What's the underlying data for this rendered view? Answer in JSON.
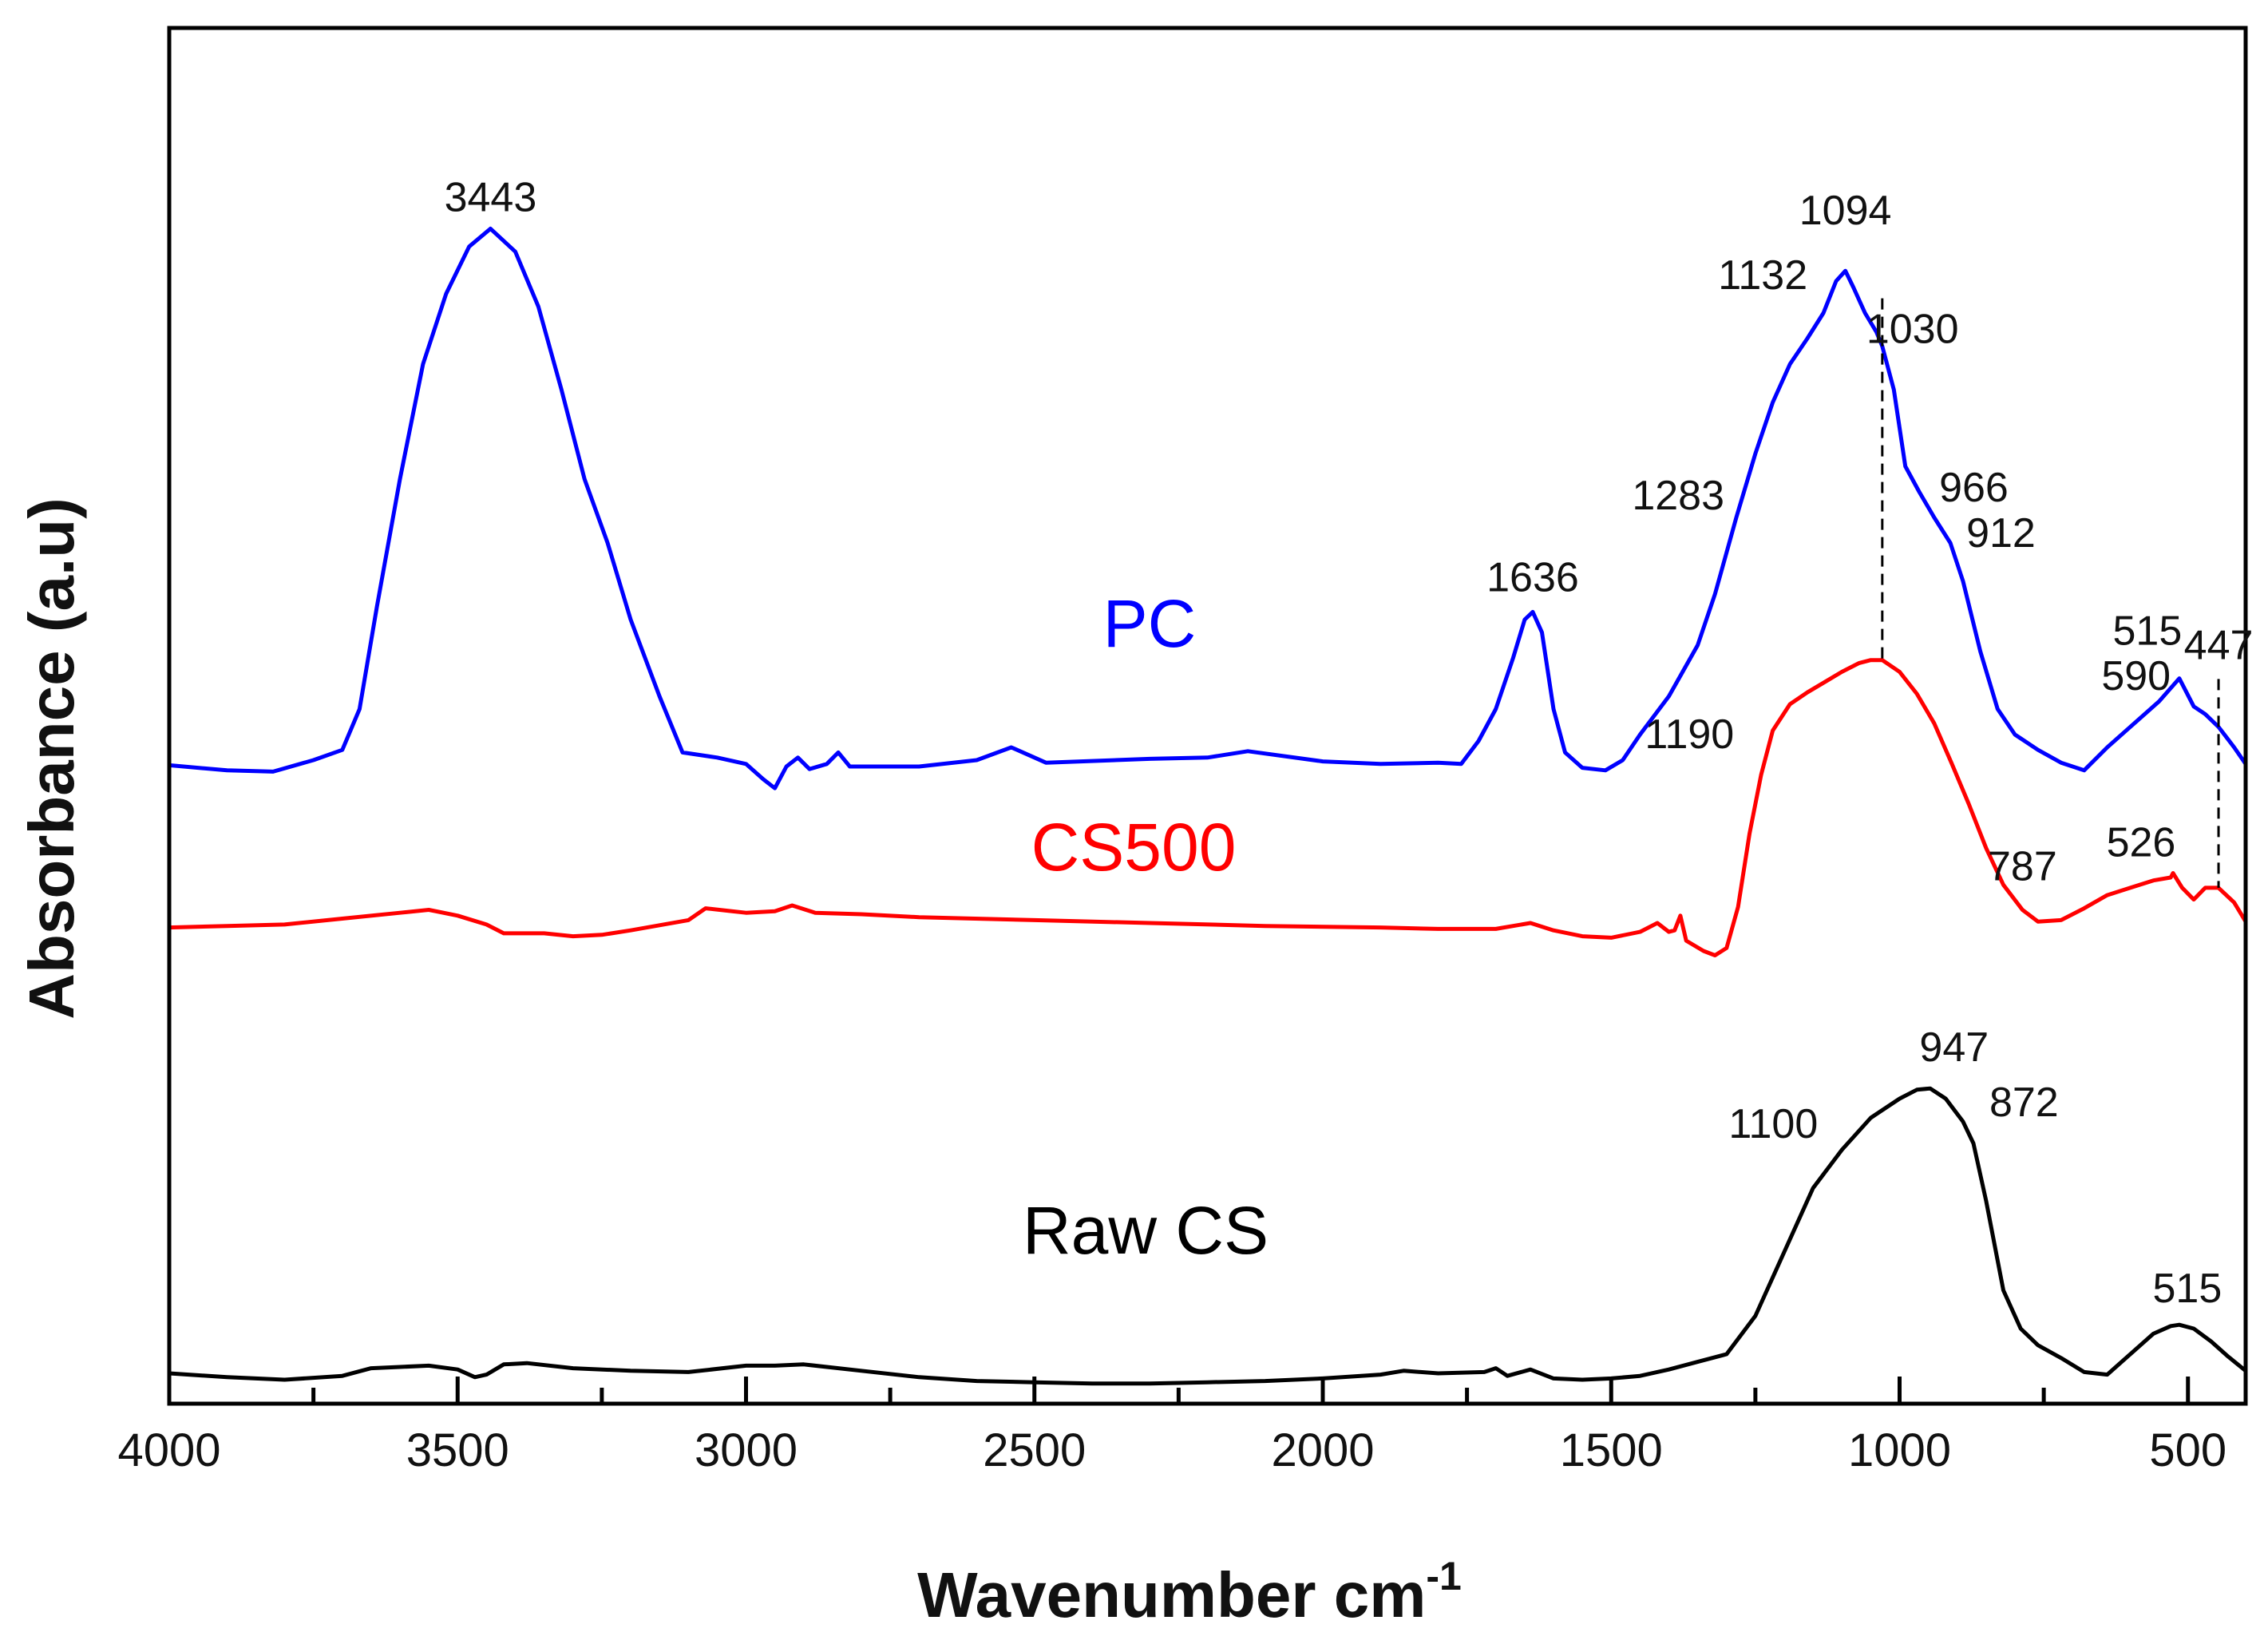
{
  "chart_data": {
    "type": "line",
    "title": "",
    "xlabel": "Wavenumber cm",
    "xlabel_superscript": "-1",
    "ylabel": "Absorbance (a.u)",
    "xlim": [
      4000,
      400
    ],
    "ylim": [
      0,
      1
    ],
    "y_ticks_shown": false,
    "grid": false,
    "x_ticks": [
      {
        "value": 4000,
        "label": "4000"
      },
      {
        "value": 3500,
        "label": "3500"
      },
      {
        "value": 3000,
        "label": "3000"
      },
      {
        "value": 2500,
        "label": "2500"
      },
      {
        "value": 2000,
        "label": "2000"
      },
      {
        "value": 1500,
        "label": "1500"
      },
      {
        "value": 1000,
        "label": "1000"
      },
      {
        "value": 500,
        "label": "500"
      }
    ],
    "series": [
      {
        "name": "PC",
        "color": "#0000ff",
        "points": [
          [
            4000,
            0.526
          ],
          [
            3900,
            0.522
          ],
          [
            3820,
            0.521
          ],
          [
            3750,
            0.53
          ],
          [
            3700,
            0.538
          ],
          [
            3670,
            0.57
          ],
          [
            3640,
            0.65
          ],
          [
            3600,
            0.75
          ],
          [
            3560,
            0.84
          ],
          [
            3520,
            0.895
          ],
          [
            3480,
            0.932
          ],
          [
            3443,
            0.946
          ],
          [
            3400,
            0.928
          ],
          [
            3360,
            0.885
          ],
          [
            3320,
            0.82
          ],
          [
            3280,
            0.75
          ],
          [
            3240,
            0.7
          ],
          [
            3200,
            0.64
          ],
          [
            3150,
            0.58
          ],
          [
            3110,
            0.536
          ],
          [
            3050,
            0.532
          ],
          [
            3000,
            0.527
          ],
          [
            2970,
            0.515
          ],
          [
            2950,
            0.508
          ],
          [
            2930,
            0.525
          ],
          [
            2910,
            0.532
          ],
          [
            2890,
            0.523
          ],
          [
            2860,
            0.527
          ],
          [
            2840,
            0.536
          ],
          [
            2820,
            0.525
          ],
          [
            2700,
            0.525
          ],
          [
            2600,
            0.53
          ],
          [
            2540,
            0.54
          ],
          [
            2480,
            0.528
          ],
          [
            2300,
            0.531
          ],
          [
            2200,
            0.532
          ],
          [
            2130,
            0.537
          ],
          [
            2000,
            0.529
          ],
          [
            1900,
            0.527
          ],
          [
            1800,
            0.528
          ],
          [
            1760,
            0.527
          ],
          [
            1730,
            0.545
          ],
          [
            1700,
            0.57
          ],
          [
            1670,
            0.61
          ],
          [
            1650,
            0.64
          ],
          [
            1636,
            0.646
          ],
          [
            1620,
            0.63
          ],
          [
            1600,
            0.57
          ],
          [
            1580,
            0.536
          ],
          [
            1550,
            0.524
          ],
          [
            1510,
            0.522
          ],
          [
            1480,
            0.53
          ],
          [
            1450,
            0.55
          ],
          [
            1400,
            0.58
          ],
          [
            1350,
            0.62
          ],
          [
            1320,
            0.66
          ],
          [
            1283,
            0.72
          ],
          [
            1250,
            0.77
          ],
          [
            1220,
            0.81
          ],
          [
            1190,
            0.84
          ],
          [
            1160,
            0.86
          ],
          [
            1132,
            0.88
          ],
          [
            1110,
            0.905
          ],
          [
            1094,
            0.913
          ],
          [
            1080,
            0.9
          ],
          [
            1060,
            0.88
          ],
          [
            1040,
            0.865
          ],
          [
            1030,
            0.854
          ],
          [
            1010,
            0.82
          ],
          [
            990,
            0.76
          ],
          [
            966,
            0.74
          ],
          [
            940,
            0.72
          ],
          [
            912,
            0.7
          ],
          [
            890,
            0.67
          ],
          [
            860,
            0.615
          ],
          [
            830,
            0.57
          ],
          [
            800,
            0.55
          ],
          [
            760,
            0.538
          ],
          [
            720,
            0.528
          ],
          [
            680,
            0.522
          ],
          [
            640,
            0.54
          ],
          [
            590,
            0.56
          ],
          [
            550,
            0.576
          ],
          [
            515,
            0.594
          ],
          [
            490,
            0.572
          ],
          [
            470,
            0.566
          ],
          [
            447,
            0.556
          ],
          [
            420,
            0.54
          ],
          [
            400,
            0.527
          ]
        ]
      },
      {
        "name": "CS500",
        "color": "#ff0000",
        "points": [
          [
            4000,
            0.366
          ],
          [
            3900,
            0.367
          ],
          [
            3800,
            0.368
          ],
          [
            3700,
            0.372
          ],
          [
            3600,
            0.376
          ],
          [
            3550,
            0.378
          ],
          [
            3500,
            0.374
          ],
          [
            3450,
            0.368
          ],
          [
            3420,
            0.362
          ],
          [
            3400,
            0.362
          ],
          [
            3350,
            0.362
          ],
          [
            3300,
            0.36
          ],
          [
            3250,
            0.361
          ],
          [
            3200,
            0.364
          ],
          [
            3100,
            0.371
          ],
          [
            3070,
            0.379
          ],
          [
            3000,
            0.376
          ],
          [
            2950,
            0.377
          ],
          [
            2920,
            0.381
          ],
          [
            2880,
            0.376
          ],
          [
            2800,
            0.375
          ],
          [
            2700,
            0.373
          ],
          [
            2500,
            0.371
          ],
          [
            2300,
            0.369
          ],
          [
            2100,
            0.367
          ],
          [
            1900,
            0.366
          ],
          [
            1800,
            0.365
          ],
          [
            1700,
            0.365
          ],
          [
            1640,
            0.369
          ],
          [
            1600,
            0.364
          ],
          [
            1550,
            0.36
          ],
          [
            1500,
            0.359
          ],
          [
            1450,
            0.363
          ],
          [
            1420,
            0.369
          ],
          [
            1400,
            0.363
          ],
          [
            1390,
            0.364
          ],
          [
            1380,
            0.374
          ],
          [
            1370,
            0.357
          ],
          [
            1340,
            0.35
          ],
          [
            1320,
            0.347
          ],
          [
            1300,
            0.352
          ],
          [
            1280,
            0.38
          ],
          [
            1260,
            0.43
          ],
          [
            1240,
            0.47
          ],
          [
            1220,
            0.5
          ],
          [
            1190,
            0.518
          ],
          [
            1160,
            0.526
          ],
          [
            1130,
            0.533
          ],
          [
            1100,
            0.54
          ],
          [
            1070,
            0.546
          ],
          [
            1050,
            0.548
          ],
          [
            1030,
            0.548
          ],
          [
            1000,
            0.54
          ],
          [
            970,
            0.525
          ],
          [
            940,
            0.505
          ],
          [
            910,
            0.478
          ],
          [
            880,
            0.45
          ],
          [
            850,
            0.42
          ],
          [
            820,
            0.395
          ],
          [
            787,
            0.378
          ],
          [
            760,
            0.37
          ],
          [
            720,
            0.371
          ],
          [
            680,
            0.379
          ],
          [
            640,
            0.388
          ],
          [
            600,
            0.393
          ],
          [
            560,
            0.398
          ],
          [
            530,
            0.4
          ],
          [
            526,
            0.403
          ],
          [
            510,
            0.393
          ],
          [
            490,
            0.385
          ],
          [
            470,
            0.393
          ],
          [
            447,
            0.393
          ],
          [
            420,
            0.383
          ],
          [
            400,
            0.37
          ]
        ]
      },
      {
        "name": "Raw CS",
        "color": "#000000",
        "points": [
          [
            4000,
            0.075
          ],
          [
            3900,
            0.072
          ],
          [
            3800,
            0.07
          ],
          [
            3700,
            0.073
          ],
          [
            3650,
            0.079
          ],
          [
            3600,
            0.08
          ],
          [
            3550,
            0.081
          ],
          [
            3500,
            0.078
          ],
          [
            3470,
            0.072
          ],
          [
            3450,
            0.074
          ],
          [
            3420,
            0.082
          ],
          [
            3380,
            0.083
          ],
          [
            3300,
            0.079
          ],
          [
            3200,
            0.077
          ],
          [
            3100,
            0.076
          ],
          [
            3000,
            0.081
          ],
          [
            2950,
            0.081
          ],
          [
            2900,
            0.082
          ],
          [
            2800,
            0.077
          ],
          [
            2700,
            0.072
          ],
          [
            2600,
            0.069
          ],
          [
            2500,
            0.068
          ],
          [
            2400,
            0.067
          ],
          [
            2300,
            0.067
          ],
          [
            2200,
            0.068
          ],
          [
            2100,
            0.069
          ],
          [
            2000,
            0.071
          ],
          [
            1900,
            0.074
          ],
          [
            1860,
            0.077
          ],
          [
            1800,
            0.075
          ],
          [
            1720,
            0.076
          ],
          [
            1700,
            0.079
          ],
          [
            1680,
            0.073
          ],
          [
            1640,
            0.078
          ],
          [
            1600,
            0.071
          ],
          [
            1550,
            0.07
          ],
          [
            1500,
            0.071
          ],
          [
            1450,
            0.073
          ],
          [
            1400,
            0.078
          ],
          [
            1350,
            0.084
          ],
          [
            1300,
            0.09
          ],
          [
            1250,
            0.12
          ],
          [
            1200,
            0.17
          ],
          [
            1150,
            0.22
          ],
          [
            1100,
            0.25
          ],
          [
            1050,
            0.275
          ],
          [
            1000,
            0.29
          ],
          [
            970,
            0.297
          ],
          [
            947,
            0.298
          ],
          [
            920,
            0.29
          ],
          [
            890,
            0.272
          ],
          [
            872,
            0.255
          ],
          [
            850,
            0.21
          ],
          [
            820,
            0.14
          ],
          [
            790,
            0.11
          ],
          [
            760,
            0.097
          ],
          [
            720,
            0.087
          ],
          [
            680,
            0.076
          ],
          [
            640,
            0.074
          ],
          [
            600,
            0.09
          ],
          [
            560,
            0.106
          ],
          [
            530,
            0.112
          ],
          [
            515,
            0.113
          ],
          [
            490,
            0.11
          ],
          [
            460,
            0.1
          ],
          [
            430,
            0.088
          ],
          [
            400,
            0.077
          ]
        ]
      }
    ],
    "series_labels": [
      {
        "series": "PC",
        "text": "PC",
        "color": "#0000ff"
      },
      {
        "series": "CS500",
        "text": "CS500",
        "color": "#ff0000"
      },
      {
        "series": "Raw CS",
        "text": "Raw CS",
        "color": "#000000"
      }
    ],
    "annotations": [
      {
        "text": "3443",
        "series": "PC",
        "x": 3443
      },
      {
        "text": "1636",
        "series": "PC",
        "x": 1636
      },
      {
        "text": "1283",
        "series": "PC",
        "x": 1283
      },
      {
        "text": "1132",
        "series": "PC",
        "x": 1132
      },
      {
        "text": "1094",
        "series": "PC",
        "x": 1094
      },
      {
        "text": "1030",
        "series": "PC",
        "x": 1030
      },
      {
        "text": "966",
        "series": "PC",
        "x": 966
      },
      {
        "text": "912",
        "series": "PC",
        "x": 912
      },
      {
        "text": "590",
        "series": "PC",
        "x": 590
      },
      {
        "text": "515",
        "series": "PC",
        "x": 515
      },
      {
        "text": "447",
        "series": "PC",
        "x": 447
      },
      {
        "text": "1190",
        "series": "CS500",
        "x": 1190
      },
      {
        "text": "787",
        "series": "CS500",
        "x": 787
      },
      {
        "text": "526",
        "series": "CS500",
        "x": 526
      },
      {
        "text": "947",
        "series": "Raw CS",
        "x": 947
      },
      {
        "text": "1100",
        "series": "Raw CS",
        "x": 1100
      },
      {
        "text": "872",
        "series": "Raw CS",
        "x": 872
      },
      {
        "text": "515",
        "series": "Raw CS",
        "x": 515
      }
    ],
    "dashed_guides": [
      {
        "x": 1030,
        "from_series": "PC",
        "to_series": "CS500"
      },
      {
        "x": 447,
        "from_series": "PC",
        "to_series": "CS500"
      }
    ]
  }
}
